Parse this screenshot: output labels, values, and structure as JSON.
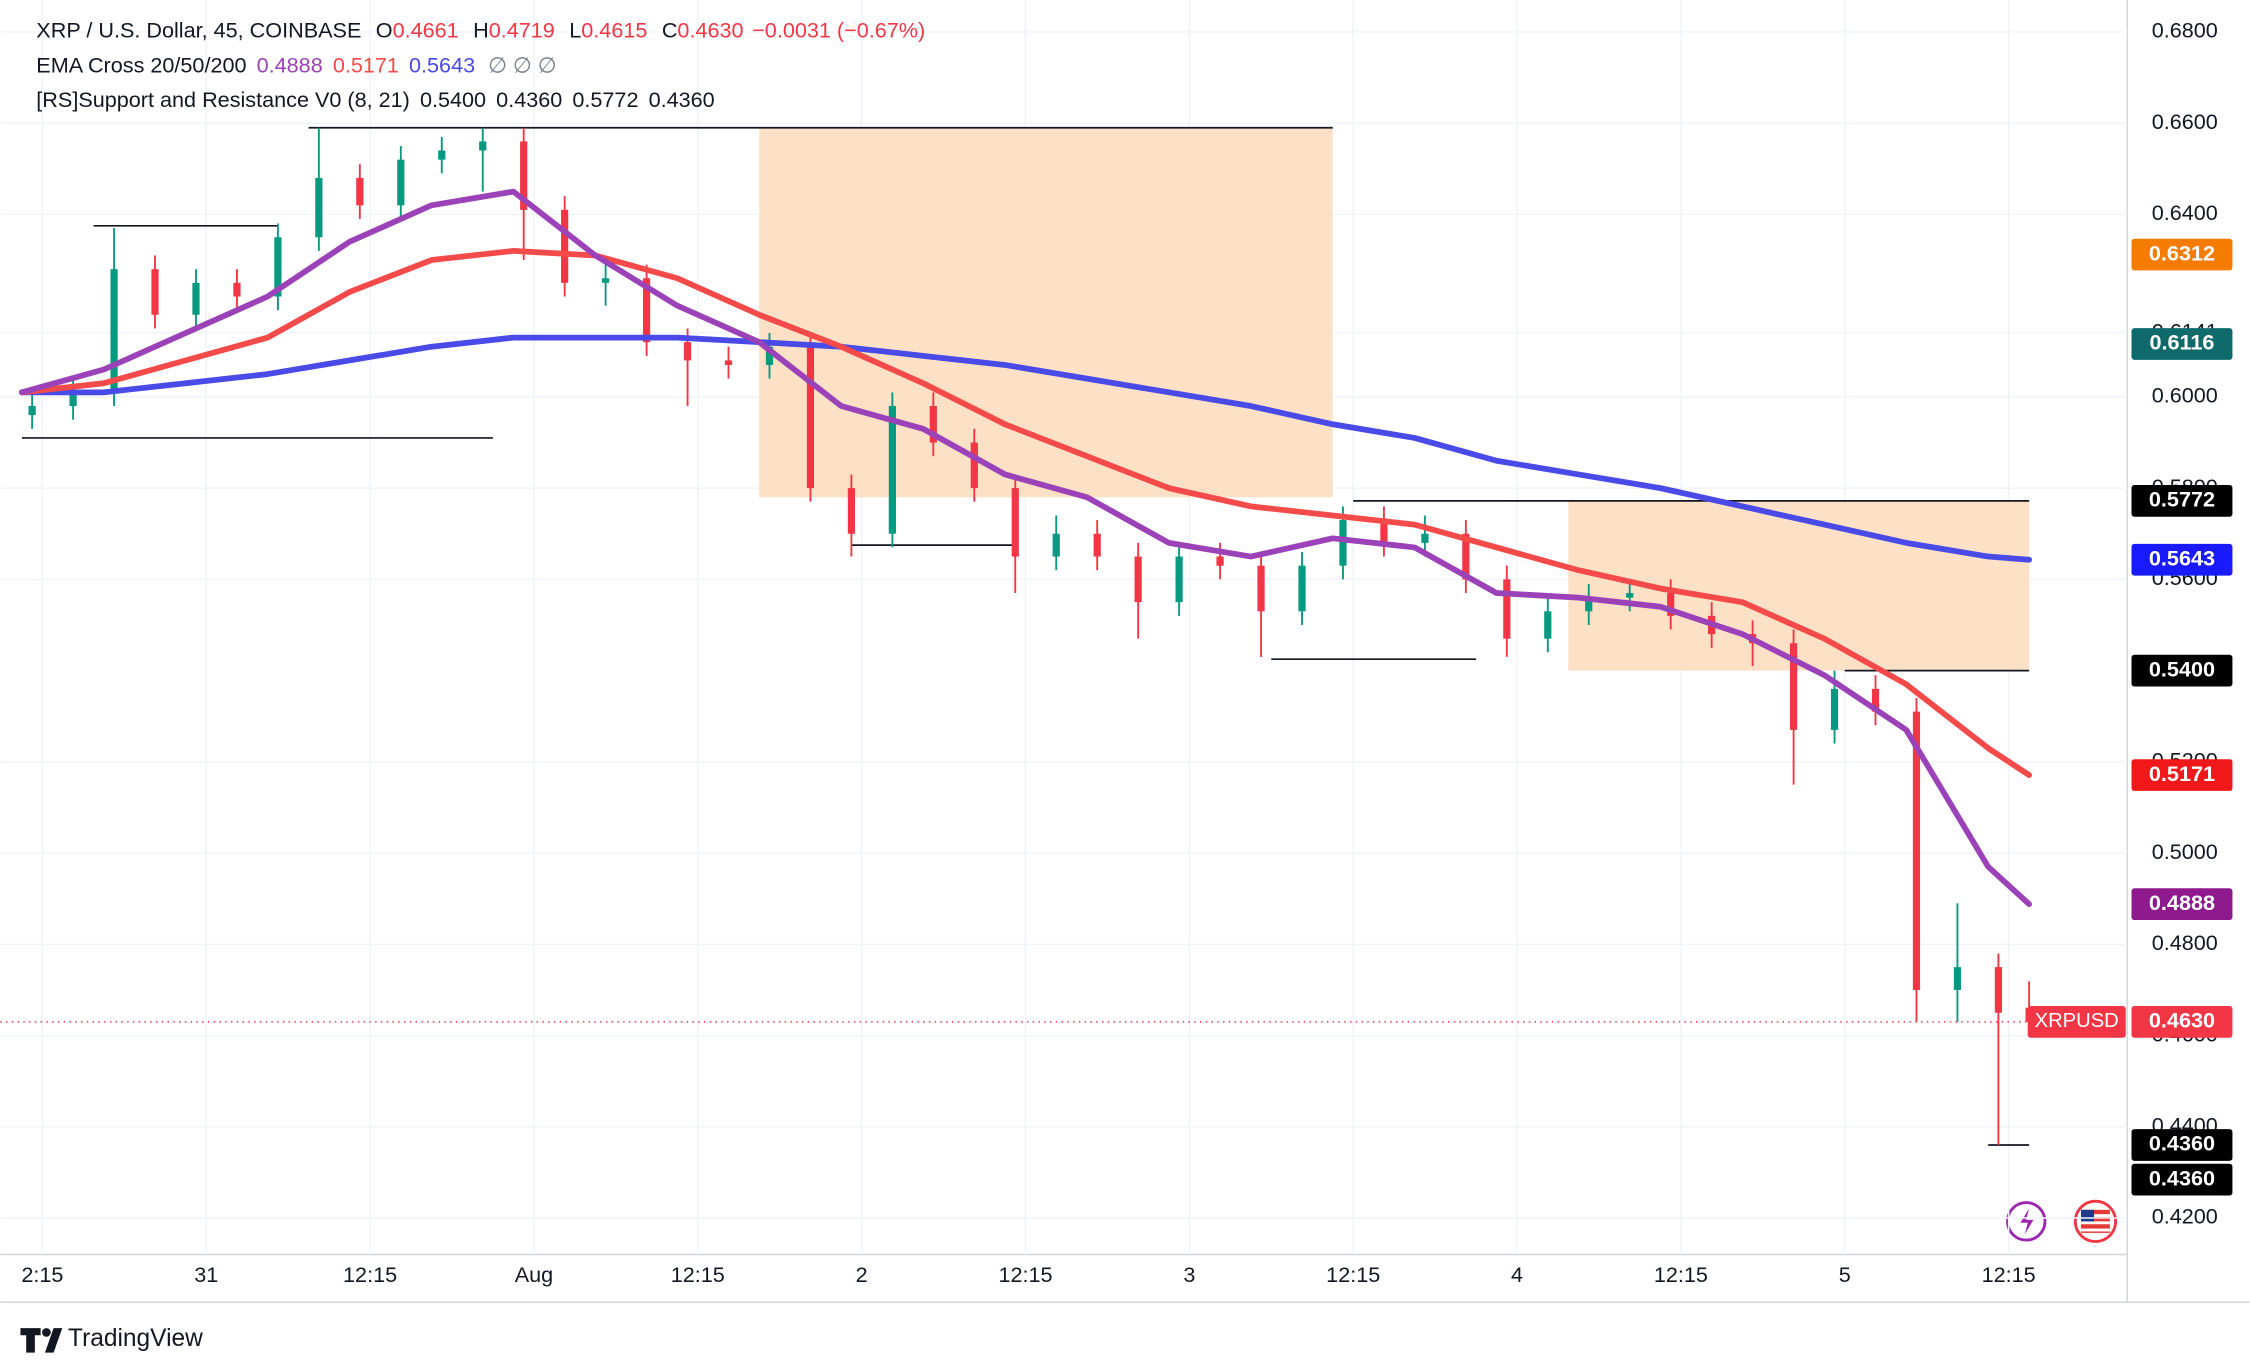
{
  "chart_data": {
    "type": "candlestick",
    "legend": {
      "title": "XRP / U.S. Dollar, 45, COINBASE",
      "ohlc": [
        {
          "key": "O",
          "value": "0.4661"
        },
        {
          "key": "H",
          "value": "0.4719"
        },
        {
          "key": "L",
          "value": "0.4615"
        },
        {
          "key": "C",
          "value": "0.4630"
        }
      ],
      "change": "−0.0031 (−0.67%)",
      "indicators": [
        {
          "name": "EMA Cross 20/50/200",
          "values": [
            "0.4888",
            "0.5171",
            "0.5643"
          ],
          "extra": "∅ ∅ ∅"
        },
        {
          "name": "[RS]Support and Resistance V0 (8, 21)",
          "values": [
            "0.5400",
            "0.4360",
            "0.5772",
            "0.4360"
          ]
        }
      ]
    },
    "up_color": "#089981",
    "down_color": "#f23645",
    "xlim": [
      0,
      196
    ],
    "ylim": [
      0.412,
      0.687
    ],
    "grid": true,
    "xticks": [
      {
        "value": 2,
        "label": "2:15"
      },
      {
        "value": 18,
        "label": "31"
      },
      {
        "value": 34,
        "label": "12:15"
      },
      {
        "value": 50,
        "label": "Aug"
      },
      {
        "value": 66,
        "label": "12:15"
      },
      {
        "value": 82,
        "label": "2"
      },
      {
        "value": 98,
        "label": "12:15"
      },
      {
        "value": 114,
        "label": "3"
      },
      {
        "value": 130,
        "label": "12:15"
      },
      {
        "value": 146,
        "label": "4"
      },
      {
        "value": 162,
        "label": "12:15"
      },
      {
        "value": 178,
        "label": "5"
      },
      {
        "value": 194,
        "label": "12:15"
      }
    ],
    "yticks": [
      {
        "value": 0.68,
        "label": "0.6800"
      },
      {
        "value": 0.66,
        "label": "0.6600"
      },
      {
        "value": 0.64,
        "label": "0.6400"
      },
      {
        "value": 0.6141,
        "label": "0.6141"
      },
      {
        "value": 0.6,
        "label": "0.6000"
      },
      {
        "value": 0.58,
        "label": "0.5800"
      },
      {
        "value": 0.56,
        "label": "0.5600"
      },
      {
        "value": 0.52,
        "label": "0.5200"
      },
      {
        "value": 0.5,
        "label": "0.5000"
      },
      {
        "value": 0.48,
        "label": "0.4800"
      },
      {
        "value": 0.46,
        "label": "0.4600"
      },
      {
        "value": 0.44,
        "label": "0.4400"
      },
      {
        "value": 0.42,
        "label": "0.4200"
      }
    ],
    "candles": [
      {
        "x": 1,
        "o": 0.596,
        "h": 0.601,
        "l": 0.593,
        "c": 0.598
      },
      {
        "x": 5,
        "o": 0.598,
        "h": 0.604,
        "l": 0.595,
        "c": 0.601
      },
      {
        "x": 9,
        "o": 0.601,
        "h": 0.637,
        "l": 0.598,
        "c": 0.628
      },
      {
        "x": 13,
        "o": 0.628,
        "h": 0.631,
        "l": 0.615,
        "c": 0.618
      },
      {
        "x": 17,
        "o": 0.618,
        "h": 0.628,
        "l": 0.615,
        "c": 0.625
      },
      {
        "x": 21,
        "o": 0.625,
        "h": 0.628,
        "l": 0.619,
        "c": 0.622
      },
      {
        "x": 25,
        "o": 0.622,
        "h": 0.638,
        "l": 0.619,
        "c": 0.635
      },
      {
        "x": 29,
        "o": 0.635,
        "h": 0.659,
        "l": 0.632,
        "c": 0.648
      },
      {
        "x": 33,
        "o": 0.648,
        "h": 0.651,
        "l": 0.639,
        "c": 0.642
      },
      {
        "x": 37,
        "o": 0.642,
        "h": 0.655,
        "l": 0.639,
        "c": 0.652
      },
      {
        "x": 41,
        "o": 0.652,
        "h": 0.657,
        "l": 0.649,
        "c": 0.654
      },
      {
        "x": 45,
        "o": 0.654,
        "h": 0.659,
        "l": 0.645,
        "c": 0.656
      },
      {
        "x": 49,
        "o": 0.656,
        "h": 0.659,
        "l": 0.63,
        "c": 0.641
      },
      {
        "x": 53,
        "o": 0.641,
        "h": 0.644,
        "l": 0.622,
        "c": 0.625
      },
      {
        "x": 57,
        "o": 0.625,
        "h": 0.63,
        "l": 0.62,
        "c": 0.626
      },
      {
        "x": 61,
        "o": 0.626,
        "h": 0.629,
        "l": 0.609,
        "c": 0.612
      },
      {
        "x": 65,
        "o": 0.612,
        "h": 0.615,
        "l": 0.598,
        "c": 0.608
      },
      {
        "x": 69,
        "o": 0.608,
        "h": 0.611,
        "l": 0.604,
        "c": 0.607
      },
      {
        "x": 73,
        "o": 0.607,
        "h": 0.614,
        "l": 0.604,
        "c": 0.611
      },
      {
        "x": 77,
        "o": 0.611,
        "h": 0.614,
        "l": 0.577,
        "c": 0.58
      },
      {
        "x": 81,
        "o": 0.58,
        "h": 0.583,
        "l": 0.565,
        "c": 0.57
      },
      {
        "x": 85,
        "o": 0.57,
        "h": 0.601,
        "l": 0.567,
        "c": 0.598
      },
      {
        "x": 89,
        "o": 0.598,
        "h": 0.601,
        "l": 0.587,
        "c": 0.59
      },
      {
        "x": 93,
        "o": 0.59,
        "h": 0.593,
        "l": 0.577,
        "c": 0.58
      },
      {
        "x": 97,
        "o": 0.58,
        "h": 0.583,
        "l": 0.557,
        "c": 0.565
      },
      {
        "x": 101,
        "o": 0.565,
        "h": 0.574,
        "l": 0.562,
        "c": 0.57
      },
      {
        "x": 105,
        "o": 0.57,
        "h": 0.573,
        "l": 0.562,
        "c": 0.565
      },
      {
        "x": 109,
        "o": 0.565,
        "h": 0.568,
        "l": 0.547,
        "c": 0.555
      },
      {
        "x": 113,
        "o": 0.555,
        "h": 0.568,
        "l": 0.552,
        "c": 0.565
      },
      {
        "x": 117,
        "o": 0.565,
        "h": 0.568,
        "l": 0.56,
        "c": 0.563
      },
      {
        "x": 121,
        "o": 0.563,
        "h": 0.566,
        "l": 0.543,
        "c": 0.553
      },
      {
        "x": 125,
        "o": 0.553,
        "h": 0.566,
        "l": 0.55,
        "c": 0.563
      },
      {
        "x": 129,
        "o": 0.563,
        "h": 0.576,
        "l": 0.56,
        "c": 0.573
      },
      {
        "x": 133,
        "o": 0.573,
        "h": 0.576,
        "l": 0.565,
        "c": 0.568
      },
      {
        "x": 137,
        "o": 0.568,
        "h": 0.574,
        "l": 0.565,
        "c": 0.57
      },
      {
        "x": 141,
        "o": 0.57,
        "h": 0.573,
        "l": 0.557,
        "c": 0.56
      },
      {
        "x": 145,
        "o": 0.56,
        "h": 0.563,
        "l": 0.543,
        "c": 0.547
      },
      {
        "x": 149,
        "o": 0.547,
        "h": 0.556,
        "l": 0.544,
        "c": 0.553
      },
      {
        "x": 153,
        "o": 0.553,
        "h": 0.559,
        "l": 0.55,
        "c": 0.556
      },
      {
        "x": 157,
        "o": 0.556,
        "h": 0.56,
        "l": 0.553,
        "c": 0.557
      },
      {
        "x": 161,
        "o": 0.557,
        "h": 0.56,
        "l": 0.549,
        "c": 0.552
      },
      {
        "x": 165,
        "o": 0.552,
        "h": 0.555,
        "l": 0.545,
        "c": 0.548
      },
      {
        "x": 169,
        "o": 0.548,
        "h": 0.551,
        "l": 0.541,
        "c": 0.546
      },
      {
        "x": 173,
        "o": 0.546,
        "h": 0.549,
        "l": 0.515,
        "c": 0.527
      },
      {
        "x": 177,
        "o": 0.527,
        "h": 0.54,
        "l": 0.524,
        "c": 0.536
      },
      {
        "x": 181,
        "o": 0.536,
        "h": 0.539,
        "l": 0.528,
        "c": 0.531
      },
      {
        "x": 185,
        "o": 0.531,
        "h": 0.534,
        "l": 0.463,
        "c": 0.47
      },
      {
        "x": 189,
        "o": 0.47,
        "h": 0.489,
        "l": 0.463,
        "c": 0.475
      },
      {
        "x": 193,
        "o": 0.475,
        "h": 0.478,
        "l": 0.436,
        "c": 0.465
      },
      {
        "x": 196,
        "o": 0.4661,
        "h": 0.4719,
        "l": 0.4615,
        "c": 0.463
      }
    ],
    "ema_x": [
      0,
      8,
      16,
      24,
      32,
      40,
      48,
      56,
      64,
      72,
      80,
      88,
      96,
      104,
      112,
      120,
      128,
      136,
      144,
      152,
      160,
      168,
      176,
      184,
      192,
      196
    ],
    "series": [
      {
        "color": "#4a4ae8",
        "values": [
          0.601,
          0.601,
          0.603,
          0.605,
          0.608,
          0.611,
          0.613,
          0.613,
          0.613,
          0.612,
          0.611,
          0.609,
          0.607,
          0.604,
          0.601,
          0.598,
          0.594,
          0.591,
          0.586,
          0.583,
          0.58,
          0.576,
          0.572,
          0.568,
          0.565,
          0.5643
        ]
      },
      {
        "color": "#f44a4a",
        "values": [
          0.601,
          0.603,
          0.608,
          0.613,
          0.623,
          0.63,
          0.632,
          0.631,
          0.626,
          0.618,
          0.611,
          0.603,
          0.594,
          0.587,
          0.58,
          0.576,
          0.574,
          0.572,
          0.567,
          0.562,
          0.558,
          0.555,
          0.547,
          0.537,
          0.523,
          0.5171
        ]
      },
      {
        "color": "#9c42b8",
        "values": [
          0.601,
          0.606,
          0.614,
          0.622,
          0.634,
          0.642,
          0.645,
          0.631,
          0.62,
          0.612,
          0.598,
          0.593,
          0.583,
          0.578,
          0.568,
          0.565,
          0.569,
          0.567,
          0.557,
          0.556,
          0.554,
          0.548,
          0.539,
          0.527,
          0.497,
          0.4888
        ]
      }
    ],
    "zones": [
      {
        "x": [
          72,
          128
        ],
        "ylim": [
          0.578,
          0.659
        ],
        "color": "#fddcbc"
      },
      {
        "x": [
          151,
          196
        ],
        "ylim": [
          0.54,
          0.5772
        ],
        "color": "#fddcbc"
      }
    ],
    "levels": [
      {
        "x": [
          28,
          128
        ],
        "value": 0.659
      },
      {
        "x": [
          0,
          46
        ],
        "value": 0.591
      },
      {
        "x": [
          7,
          25
        ],
        "value": 0.6375
      },
      {
        "x": [
          81,
          97
        ],
        "value": 0.5675
      },
      {
        "x": [
          122,
          142
        ],
        "value": 0.5425
      },
      {
        "x": [
          130,
          196
        ],
        "value": 0.5772
      },
      {
        "x": [
          178,
          196
        ],
        "value": 0.54
      },
      {
        "x": [
          192,
          196
        ],
        "value": 0.436
      }
    ],
    "price_labels": [
      {
        "value": 0.6312,
        "label": "0.6312",
        "color": "#f57c00"
      },
      {
        "value": 0.6116,
        "label": "0.6116",
        "color": "#0f6b6b"
      },
      {
        "value": 0.5772,
        "label": "0.5772",
        "color": "#000000"
      },
      {
        "value": 0.5643,
        "label": "0.5643",
        "color": "#1a1aff"
      },
      {
        "value": 0.54,
        "label": "0.5400",
        "color": "#000000"
      },
      {
        "value": 0.5171,
        "label": "0.5171",
        "color": "#f01818"
      },
      {
        "value": 0.4888,
        "label": "0.4888",
        "color": "#8e1a8e"
      },
      {
        "value": 0.463,
        "label": "0.4630",
        "name": "XRPUSD",
        "color": "#f23645"
      },
      {
        "value": 0.436,
        "label": "0.4360",
        "color": "#000000"
      },
      {
        "value": 0.436,
        "label": "0.4360",
        "color": "#000000"
      }
    ]
  },
  "footer": {
    "brand": "TradingView"
  }
}
